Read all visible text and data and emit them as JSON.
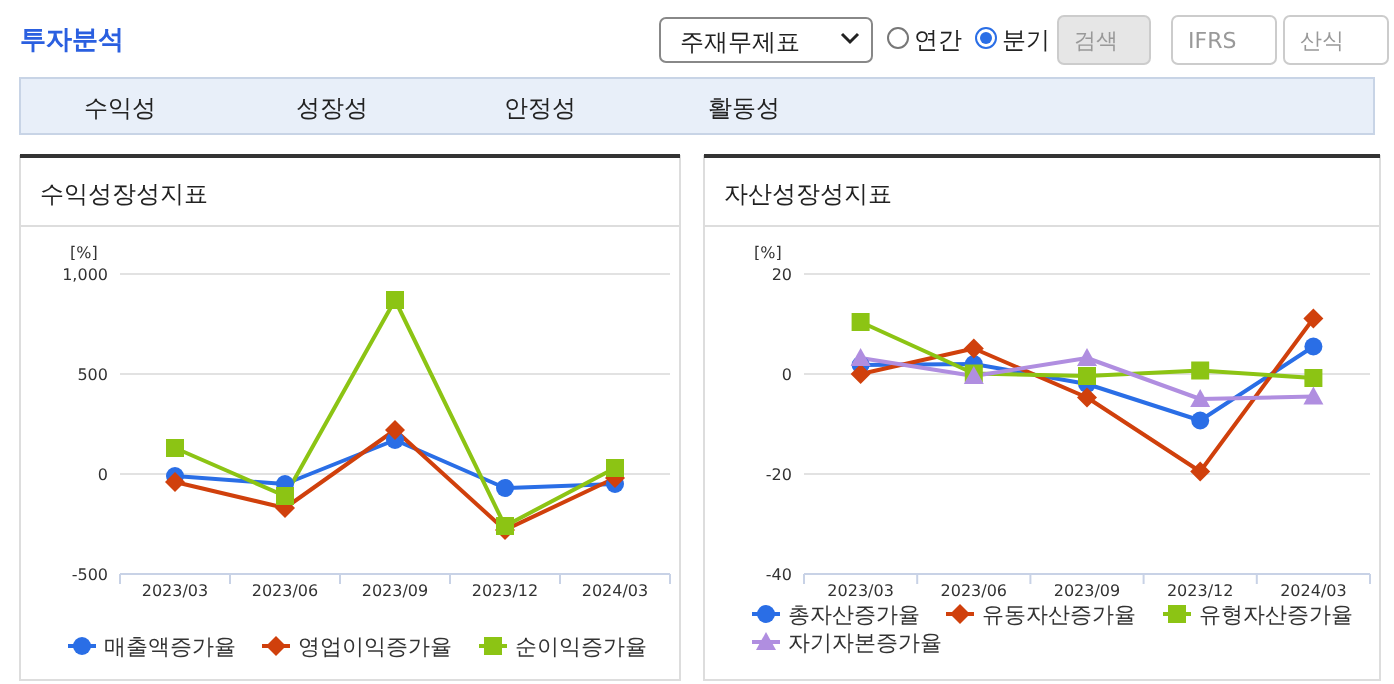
{
  "chart_data": [
    {
      "type": "other",
      "title": "투자분석",
      "annotations": [
        "주재무제표",
        "연간",
        "분기",
        "검색",
        "IFRS",
        "산식",
        "수익성",
        "성장성",
        "안정성",
        "활동성"
      ]
    },
    {
      "type": "line",
      "title": "수익성장성지표",
      "ylabel": "[%]",
      "categories": [
        "2023/03",
        "2023/06",
        "2023/09",
        "2023/12",
        "2024/03"
      ],
      "ylim": [
        -500,
        1000
      ],
      "yticks": [
        -500,
        0,
        500,
        {
          "value": 1000,
          "label": "1,000"
        }
      ],
      "grid": "y",
      "legend": "bottom",
      "series": [
        {
          "name": "매출액증가율",
          "color": "#2a6ee6",
          "marker": "circle",
          "values": [
            -10,
            -50,
            170,
            -70,
            -50
          ]
        },
        {
          "name": "영업이익증가율",
          "color": "#d0400c",
          "marker": "diamond",
          "values": [
            -40,
            -170,
            220,
            -280,
            -20
          ]
        },
        {
          "name": "순이익증가율",
          "color": "#8cc414",
          "marker": "square",
          "values": [
            130,
            -110,
            870,
            -260,
            30
          ]
        }
      ]
    },
    {
      "type": "line",
      "title": "자산성장성지표",
      "ylabel": "[%]",
      "categories": [
        "2023/03",
        "2023/06",
        "2023/09",
        "2023/12",
        "2024/03"
      ],
      "ylim": [
        -40,
        20
      ],
      "yticks": [
        -40,
        -20,
        0,
        20
      ],
      "grid": "y",
      "legend": "bottom",
      "series": [
        {
          "name": "총자산증가율",
          "color": "#2a6ee6",
          "marker": "circle",
          "values": [
            1.8,
            2.0,
            -2.0,
            -9.3,
            5.5
          ]
        },
        {
          "name": "유동자산증가율",
          "color": "#d0400c",
          "marker": "diamond",
          "values": [
            0,
            5.1,
            -4.7,
            -19.5,
            11.1
          ]
        },
        {
          "name": "유형자산증가율",
          "color": "#8cc414",
          "marker": "square",
          "values": [
            10.4,
            0.1,
            -0.4,
            0.7,
            -0.8
          ]
        },
        {
          "name": "자기자본증가율",
          "color": "#b08ee0",
          "marker": "triangle",
          "values": [
            3.2,
            -0.4,
            3.2,
            -5.0,
            -4.5
          ]
        }
      ]
    }
  ]
}
